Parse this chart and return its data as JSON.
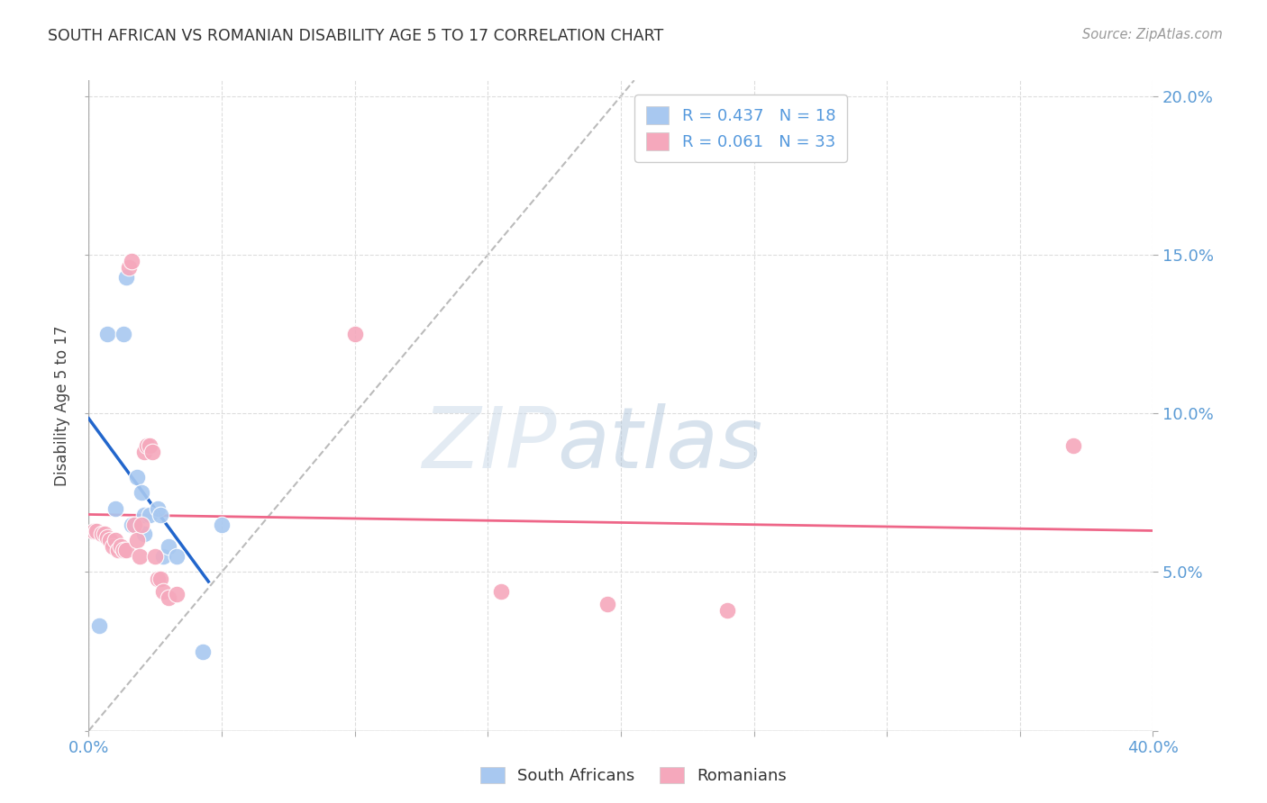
{
  "title": "SOUTH AFRICAN VS ROMANIAN DISABILITY AGE 5 TO 17 CORRELATION CHART",
  "source": "Source: ZipAtlas.com",
  "ylabel": "Disability Age 5 to 17",
  "xlabel": "",
  "xlim": [
    0.0,
    0.4
  ],
  "ylim": [
    0.0,
    0.205
  ],
  "xticks": [
    0.0,
    0.05,
    0.1,
    0.15,
    0.2,
    0.25,
    0.3,
    0.35,
    0.4
  ],
  "yticks": [
    0.0,
    0.05,
    0.1,
    0.15,
    0.2
  ],
  "right_ytick_labels": [
    "",
    "5.0%",
    "10.0%",
    "15.0%",
    "20.0%"
  ],
  "sa_color": "#A8C8F0",
  "ro_color": "#F5A8BC",
  "sa_line_color": "#2266CC",
  "ro_line_color": "#EE6688",
  "diagonal_color": "#BBBBBB",
  "legend_sa_R": "0.437",
  "legend_sa_N": "18",
  "legend_ro_R": "0.061",
  "legend_ro_N": "33",
  "watermark_zip": "ZIP",
  "watermark_atlas": "atlas",
  "background_color": "#FFFFFF",
  "grid_color": "#DDDDDD",
  "sa_points_x": [
    0.004,
    0.007,
    0.01,
    0.013,
    0.014,
    0.016,
    0.018,
    0.02,
    0.021,
    0.021,
    0.023,
    0.026,
    0.027,
    0.028,
    0.03,
    0.033,
    0.043,
    0.05
  ],
  "sa_points_y": [
    0.033,
    0.125,
    0.07,
    0.125,
    0.143,
    0.065,
    0.08,
    0.075,
    0.068,
    0.062,
    0.068,
    0.07,
    0.068,
    0.055,
    0.058,
    0.055,
    0.025,
    0.065
  ],
  "ro_points_x": [
    0.002,
    0.003,
    0.005,
    0.006,
    0.007,
    0.008,
    0.009,
    0.01,
    0.011,
    0.012,
    0.013,
    0.014,
    0.015,
    0.016,
    0.017,
    0.018,
    0.019,
    0.02,
    0.021,
    0.022,
    0.023,
    0.024,
    0.025,
    0.026,
    0.027,
    0.028,
    0.03,
    0.033,
    0.1,
    0.155,
    0.195,
    0.24,
    0.37
  ],
  "ro_points_y": [
    0.063,
    0.063,
    0.062,
    0.062,
    0.061,
    0.06,
    0.058,
    0.06,
    0.057,
    0.058,
    0.057,
    0.057,
    0.146,
    0.148,
    0.065,
    0.06,
    0.055,
    0.065,
    0.088,
    0.09,
    0.09,
    0.088,
    0.055,
    0.048,
    0.048,
    0.044,
    0.042,
    0.043,
    0.125,
    0.044,
    0.04,
    0.038,
    0.09
  ]
}
